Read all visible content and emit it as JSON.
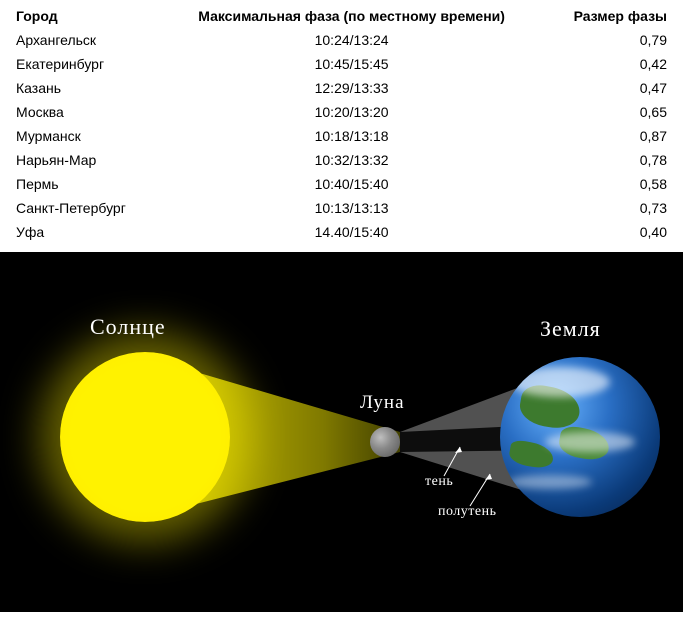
{
  "table": {
    "columns": {
      "city": "Город",
      "time": "Максимальная фаза (по местному времени)",
      "phase": "Размер фазы"
    },
    "rows": [
      {
        "city": "Архангельск",
        "time": "10:24/13:24",
        "phase": "0,79"
      },
      {
        "city": "Екатеринбург",
        "time": "10:45/15:45",
        "phase": "0,42"
      },
      {
        "city": "Казань",
        "time": "12:29/13:33",
        "phase": "0,47"
      },
      {
        "city": "Москва",
        "time": "10:20/13:20",
        "phase": "0,65"
      },
      {
        "city": "Мурманск",
        "time": "10:18/13:18",
        "phase": "0,87"
      },
      {
        "city": "Нарьян-Мар",
        "time": "10:32/13:32",
        "phase": "0,78"
      },
      {
        "city": "Пермь",
        "time": "10:40/15:40",
        "phase": "0,58"
      },
      {
        "city": "Санкт-Петербург",
        "time": "10:13/13:13",
        "phase": "0,73"
      },
      {
        "city": "Уфа",
        "time": "14.40/15:40",
        "phase": "0,40"
      }
    ]
  },
  "diagram": {
    "type": "infographic",
    "background_color": "#000000",
    "sun": {
      "label": "Солнце",
      "color": "#fff200",
      "label_color": "#ffffff"
    },
    "moon": {
      "label": "Луна",
      "color": "#8a8a8a",
      "label_color": "#ffffff"
    },
    "earth": {
      "label": "Земля",
      "ocean_color": "#2a6fc5",
      "land_color": "#3d7a2e",
      "label_color": "#ffffff"
    },
    "umbra": {
      "label": "тень",
      "fill": "#1a1a1a"
    },
    "penumbra": {
      "label": "полутень",
      "fill": "#888888"
    },
    "light_cone_color": "#fff200",
    "label_font": "Georgia, serif"
  }
}
